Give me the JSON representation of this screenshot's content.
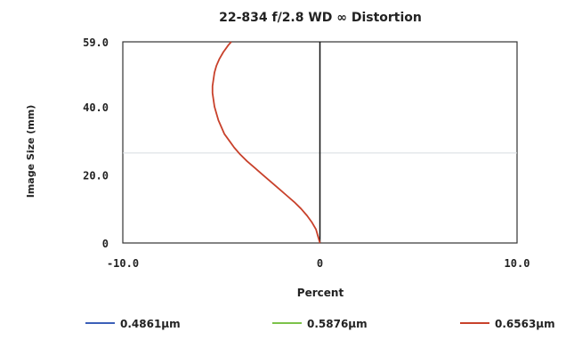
{
  "chart_data": {
    "type": "line",
    "title": "22-834 f/2.8 WD ∞ Distortion",
    "xlabel": "Percent",
    "ylabel": "Image Size (mm)",
    "xlim": [
      -10.0,
      10.0
    ],
    "ylim": [
      0,
      59.0
    ],
    "x_ticks": [
      "-10.0",
      "0",
      "10.0"
    ],
    "y_ticks": [
      "0",
      "20.0",
      "40.0",
      "59.0"
    ],
    "y_tick_values": [
      0,
      20,
      40,
      59
    ],
    "reference_line_y": 26.4,
    "grid": false,
    "legend_position": "bottom",
    "series": [
      {
        "name": "0.4861µm",
        "color": "#3b5fb8",
        "points": []
      },
      {
        "name": "0.5876µm",
        "color": "#7cc24a",
        "points": []
      },
      {
        "name": "0.6563µm",
        "color": "#c8412b",
        "points": [
          [
            0.0,
            0.0
          ],
          [
            -0.1,
            2.0
          ],
          [
            -0.2,
            4.0
          ],
          [
            -0.4,
            6.0
          ],
          [
            -0.65,
            8.0
          ],
          [
            -0.95,
            10.0
          ],
          [
            -1.3,
            12.0
          ],
          [
            -1.7,
            14.0
          ],
          [
            -2.1,
            16.0
          ],
          [
            -2.5,
            18.0
          ],
          [
            -2.9,
            20.0
          ],
          [
            -3.3,
            22.0
          ],
          [
            -3.7,
            24.0
          ],
          [
            -4.05,
            26.0
          ],
          [
            -4.35,
            28.0
          ],
          [
            -4.6,
            30.0
          ],
          [
            -4.85,
            32.0
          ],
          [
            -5.0,
            34.0
          ],
          [
            -5.15,
            36.0
          ],
          [
            -5.25,
            38.0
          ],
          [
            -5.35,
            40.0
          ],
          [
            -5.4,
            42.0
          ],
          [
            -5.45,
            44.0
          ],
          [
            -5.45,
            46.0
          ],
          [
            -5.4,
            48.0
          ],
          [
            -5.35,
            50.0
          ],
          [
            -5.25,
            52.0
          ],
          [
            -5.1,
            54.0
          ],
          [
            -4.9,
            56.0
          ],
          [
            -4.65,
            58.0
          ],
          [
            -4.5,
            59.0
          ]
        ]
      }
    ]
  }
}
